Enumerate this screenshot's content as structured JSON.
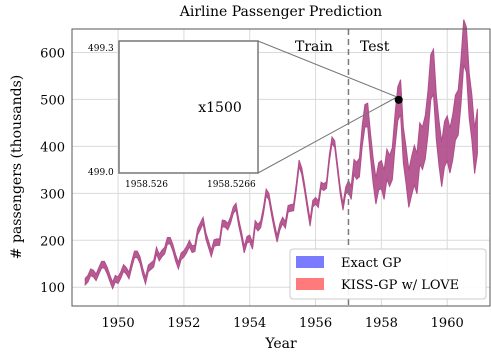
{
  "chart_data": {
    "type": "area",
    "title": "Airline Passenger Prediction",
    "xlabel": "Year",
    "ylabel": "# passengers (thousands)",
    "xlim": [
      1948.6,
      1961.3
    ],
    "ylim": [
      60,
      650
    ],
    "xticks": [
      1950,
      1952,
      1954,
      1956,
      1958,
      1960
    ],
    "xtick_labels": [
      "1950",
      "1952",
      "1954",
      "1956",
      "1958",
      "1960"
    ],
    "yticks": [
      100,
      200,
      300,
      400,
      500,
      600
    ],
    "ytick_labels": [
      "100",
      "200",
      "300",
      "400",
      "500",
      "600"
    ],
    "grid": true,
    "split_x": 1957.0,
    "annotations": {
      "train": "Train",
      "test": "Test"
    },
    "legend": {
      "position": "bottom-right",
      "entries": [
        "Exact GP",
        "KISS-GP w/ LOVE"
      ]
    },
    "series_colors": {
      "exact_gp": "#7b7bff",
      "kiss_gp": "#ff7b7b",
      "overlap": "#b04d8a"
    },
    "highlight_point": {
      "x": 1958.5263,
      "y": 499.15
    },
    "inset": {
      "zoom_label": "x1500",
      "ytop_label": "499.3",
      "ybottom_label": "499.0",
      "xleft_label": "1958.526",
      "xright_label": "1958.5266"
    },
    "series": [
      {
        "name": "KISS-GP w/ LOVE",
        "x": [
          1949.0,
          1949.083,
          1949.167,
          1949.25,
          1949.333,
          1949.417,
          1949.5,
          1949.583,
          1949.667,
          1949.75,
          1949.833,
          1949.917,
          1950.0,
          1950.083,
          1950.167,
          1950.25,
          1950.333,
          1950.417,
          1950.5,
          1950.583,
          1950.667,
          1950.75,
          1950.833,
          1950.917,
          1951.0,
          1951.083,
          1951.167,
          1951.25,
          1951.333,
          1951.417,
          1951.5,
          1951.583,
          1951.667,
          1951.75,
          1951.833,
          1951.917,
          1952.0,
          1952.083,
          1952.167,
          1952.25,
          1952.333,
          1952.417,
          1952.5,
          1952.583,
          1952.667,
          1952.75,
          1952.833,
          1952.917,
          1953.0,
          1953.083,
          1953.167,
          1953.25,
          1953.333,
          1953.417,
          1953.5,
          1953.583,
          1953.667,
          1953.75,
          1953.833,
          1953.917,
          1954.0,
          1954.083,
          1954.167,
          1954.25,
          1954.333,
          1954.417,
          1954.5,
          1954.583,
          1954.667,
          1954.75,
          1954.833,
          1954.917,
          1955.0,
          1955.083,
          1955.167,
          1955.25,
          1955.333,
          1955.417,
          1955.5,
          1955.583,
          1955.667,
          1955.75,
          1955.833,
          1955.917,
          1956.0,
          1956.083,
          1956.167,
          1956.25,
          1956.333,
          1956.417,
          1956.5,
          1956.583,
          1956.667,
          1956.75,
          1956.833,
          1956.917,
          1957.0,
          1957.083,
          1957.167,
          1957.25,
          1957.333,
          1957.417,
          1957.5,
          1957.583,
          1957.667,
          1957.75,
          1957.833,
          1957.917,
          1958.0,
          1958.083,
          1958.167,
          1958.25,
          1958.333,
          1958.417,
          1958.5,
          1958.583,
          1958.667,
          1958.75,
          1958.833,
          1958.917,
          1959.0,
          1959.083,
          1959.167,
          1959.25,
          1959.333,
          1959.417,
          1959.5,
          1959.583,
          1959.667,
          1959.75,
          1959.833,
          1959.917,
          1960.0,
          1960.083,
          1960.167,
          1960.25,
          1960.333,
          1960.417,
          1960.5,
          1960.583,
          1960.667,
          1960.75,
          1960.833,
          1960.917
        ],
        "y": [
          112,
          118,
          132,
          129,
          121,
          135,
          148,
          148,
          136,
          119,
          104,
          118,
          115,
          126,
          141,
          135,
          125,
          149,
          170,
          170,
          158,
          133,
          114,
          140,
          145,
          150,
          178,
          163,
          172,
          178,
          199,
          199,
          184,
          162,
          146,
          166,
          171,
          180,
          193,
          181,
          183,
          218,
          230,
          242,
          209,
          191,
          172,
          194,
          196,
          196,
          236,
          235,
          229,
          243,
          264,
          272,
          237,
          211,
          180,
          201,
          204,
          188,
          235,
          227,
          234,
          264,
          302,
          293,
          259,
          229,
          203,
          229,
          242,
          233,
          267,
          269,
          270,
          315,
          364,
          347,
          312,
          274,
          237,
          278,
          284,
          277,
          317,
          313,
          318,
          374,
          413,
          405,
          355,
          306,
          271,
          306,
          315,
          301,
          356,
          348,
          355,
          422,
          465,
          467,
          404,
          347,
          305,
          336,
          340,
          318,
          362,
          348,
          363,
          435,
          491,
          505,
          404,
          359,
          310,
          337,
          360,
          342,
          406,
          396,
          420,
          472,
          548,
          559,
          463,
          407,
          362,
          405,
          417,
          391,
          419,
          461,
          472,
          535,
          622,
          606,
          508,
          461,
          390,
          432
        ],
        "band_halfwidth": [
          7,
          7,
          7,
          7,
          7,
          7,
          7,
          7,
          7,
          7,
          7,
          7,
          7,
          7,
          7,
          7,
          7,
          7,
          7,
          7,
          7,
          7,
          7,
          7,
          7,
          7,
          7,
          7,
          7,
          7,
          7,
          7,
          7,
          7,
          7,
          7,
          7,
          7,
          7,
          7,
          7,
          7,
          7,
          7,
          7,
          7,
          7,
          7,
          7,
          7,
          7,
          7,
          7,
          7,
          7,
          7,
          7,
          7,
          7,
          7,
          7,
          7,
          7,
          7,
          7,
          7,
          7,
          7,
          7,
          7,
          7,
          7,
          7,
          7,
          7,
          7,
          7,
          7,
          7,
          7,
          7,
          7,
          7,
          7,
          7,
          7,
          7,
          7,
          7,
          7,
          7,
          7,
          7,
          7,
          7,
          7,
          12,
          14,
          16,
          18,
          20,
          22,
          24,
          25,
          26,
          27,
          28,
          29,
          30,
          31,
          32,
          33,
          34,
          35,
          36,
          37,
          38,
          39,
          40,
          41,
          42,
          43,
          44,
          45,
          46,
          47,
          48,
          48,
          48,
          48,
          48,
          48,
          48,
          48,
          48,
          48,
          48,
          48,
          48,
          48,
          48,
          48,
          48,
          48
        ]
      }
    ]
  }
}
